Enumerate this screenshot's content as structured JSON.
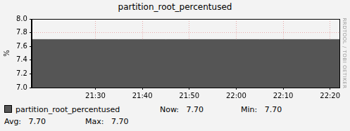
{
  "chart_data": {
    "type": "area",
    "title": "partition_root_percentused",
    "y_label": "%",
    "side_text": "RRDTOOL / TOBI OETIKER",
    "x": [
      1276.4,
      1280,
      1285,
      1290,
      1295,
      1300,
      1305,
      1310,
      1315,
      1320,
      1325,
      1330,
      1335,
      1340,
      1342
    ],
    "series": [
      {
        "name": "partition_root_percentused",
        "color": "#555555",
        "values": [
          7.7,
          7.7,
          7.7,
          7.7,
          7.7,
          7.7,
          7.7,
          7.7,
          7.7,
          7.7,
          7.7,
          7.7,
          7.7,
          7.7,
          7.7
        ]
      }
    ],
    "xlim": [
      1276.4,
      1342
    ],
    "xticks": [
      {
        "value": 1290,
        "label": "21:30"
      },
      {
        "value": 1300,
        "label": "21:40"
      },
      {
        "value": 1310,
        "label": "21:50"
      },
      {
        "value": 1320,
        "label": "22:00"
      },
      {
        "value": 1330,
        "label": "22:10"
      },
      {
        "value": 1340,
        "label": "22:20"
      }
    ],
    "ylim": [
      7,
      8
    ],
    "yticks": [
      {
        "value": 7,
        "label": "7.0"
      },
      7.2,
      7.4,
      7.6,
      7.8,
      {
        "value": 8,
        "label": "8.0"
      }
    ],
    "grid": true,
    "stats": [
      {
        "label": "Now:",
        "value": "7.70"
      },
      {
        "label": "Min:",
        "value": "7.70"
      },
      {
        "label": "Avg:",
        "value": "7.70"
      },
      {
        "label": "Max:",
        "value": "7.70"
      }
    ]
  }
}
